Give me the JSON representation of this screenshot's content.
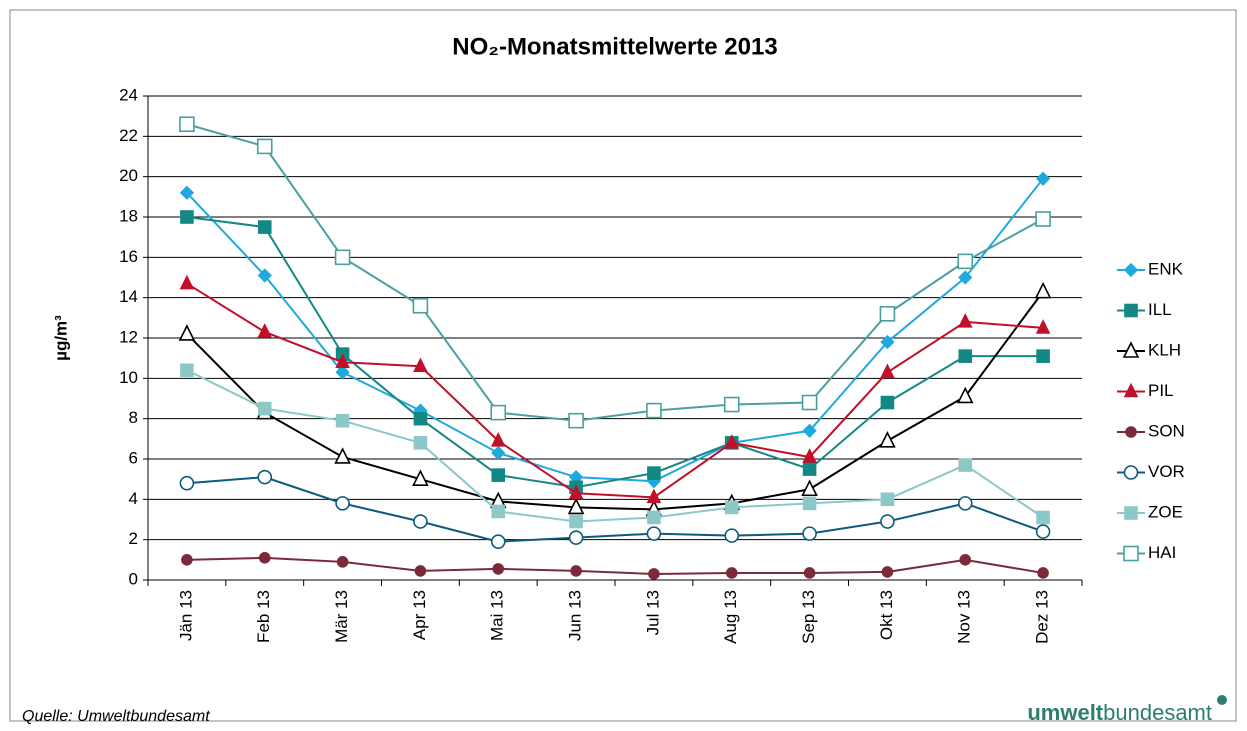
{
  "chart_data": {
    "type": "line",
    "title": "NO₂-Monatsmittelwerte 2013",
    "y_label": "µg/m³",
    "source": "Quelle: Umweltbundesamt",
    "logo_bold": "umwelt",
    "logo_rest": "bundesamt",
    "categories": [
      "Jän 13",
      "Feb 13",
      "Mär 13",
      "Apr 13",
      "Mai 13",
      "Jun 13",
      "Jul 13",
      "Aug 13",
      "Sep 13",
      "Okt 13",
      "Nov 13",
      "Dez 13"
    ],
    "ylim": [
      0,
      24
    ],
    "yticks": [
      0,
      2,
      4,
      6,
      8,
      10,
      12,
      14,
      16,
      18,
      20,
      22,
      24
    ],
    "grid": true,
    "legend": "right",
    "series": [
      {
        "name": "ENK",
        "color": "#1fa9de",
        "marker": "diamond",
        "filled": true,
        "values": [
          19.2,
          15.1,
          10.3,
          8.4,
          6.3,
          5.1,
          4.9,
          6.8,
          7.4,
          11.8,
          15.0,
          19.9
        ]
      },
      {
        "name": "ILL",
        "color": "#138884",
        "marker": "square",
        "filled": true,
        "values": [
          18.0,
          17.5,
          11.2,
          8.0,
          5.2,
          4.6,
          5.3,
          6.8,
          5.5,
          8.8,
          11.1,
          11.1
        ]
      },
      {
        "name": "KLH",
        "color": "#000000",
        "marker": "triangle",
        "filled": false,
        "values": [
          12.2,
          8.3,
          6.1,
          5.0,
          3.9,
          3.6,
          3.5,
          3.8,
          4.5,
          6.9,
          9.1,
          14.3
        ]
      },
      {
        "name": "PIL",
        "color": "#c0102b",
        "marker": "triangle",
        "filled": true,
        "values": [
          14.7,
          12.3,
          10.8,
          10.6,
          6.9,
          4.3,
          4.1,
          6.8,
          6.1,
          10.3,
          12.8,
          12.5
        ]
      },
      {
        "name": "SON",
        "color": "#7b2a3b",
        "marker": "circle",
        "filled": true,
        "values": [
          1.0,
          1.1,
          0.9,
          0.45,
          0.55,
          0.45,
          0.3,
          0.35,
          0.35,
          0.4,
          1.0,
          0.35
        ]
      },
      {
        "name": "VOR",
        "color": "#0d5a7c",
        "marker": "circle",
        "filled": false,
        "values": [
          4.8,
          5.1,
          3.8,
          2.9,
          1.9,
          2.1,
          2.3,
          2.2,
          2.3,
          2.9,
          3.8,
          2.4
        ]
      },
      {
        "name": "ZOE",
        "color": "#8cc8c8",
        "marker": "square",
        "filled": true,
        "values": [
          10.4,
          8.5,
          7.9,
          6.8,
          3.4,
          2.9,
          3.1,
          3.6,
          3.8,
          4.0,
          5.7,
          3.1
        ]
      },
      {
        "name": "HAI",
        "color": "#4aa0a0",
        "marker": "square",
        "filled": false,
        "values": [
          22.6,
          21.5,
          16.0,
          13.6,
          8.3,
          7.9,
          8.4,
          8.7,
          8.8,
          13.2,
          15.8,
          17.9
        ]
      }
    ]
  }
}
